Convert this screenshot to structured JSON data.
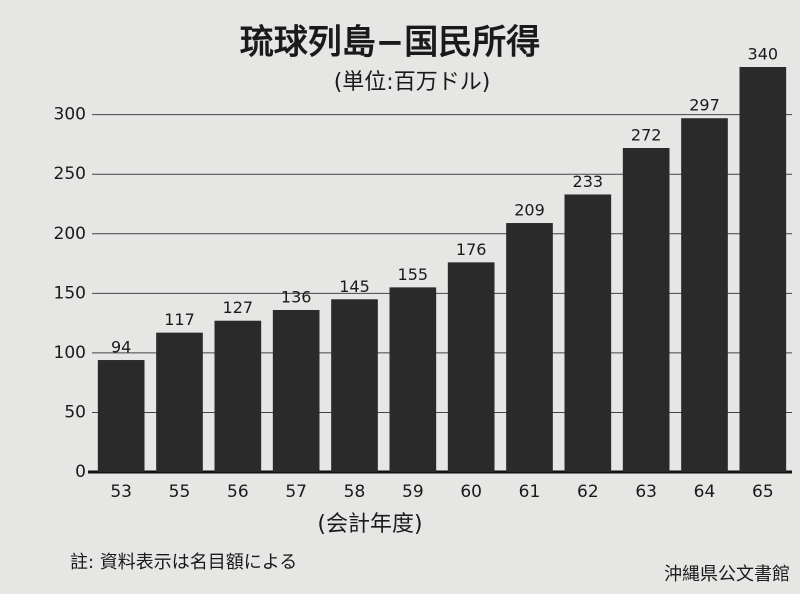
{
  "chart_data": {
    "type": "bar",
    "title": "琉球列島−国民所得",
    "subtitle": "(単位:百万ドル)",
    "x_label": "(会計年度)",
    "note": "註:  資料表示は名目額による",
    "watermark": "沖縄県公文書館",
    "categories": [
      "53",
      "55",
      "56",
      "57",
      "58",
      "59",
      "60",
      "61",
      "62",
      "63",
      "64",
      "65"
    ],
    "values": [
      94,
      117,
      127,
      136,
      145,
      155,
      176,
      209,
      233,
      272,
      297,
      340
    ],
    "color": "#2a2a2a",
    "ylim": [
      0,
      340
    ],
    "yticks": [
      0,
      50,
      100,
      150,
      200,
      250,
      300
    ],
    "grid": true
  }
}
